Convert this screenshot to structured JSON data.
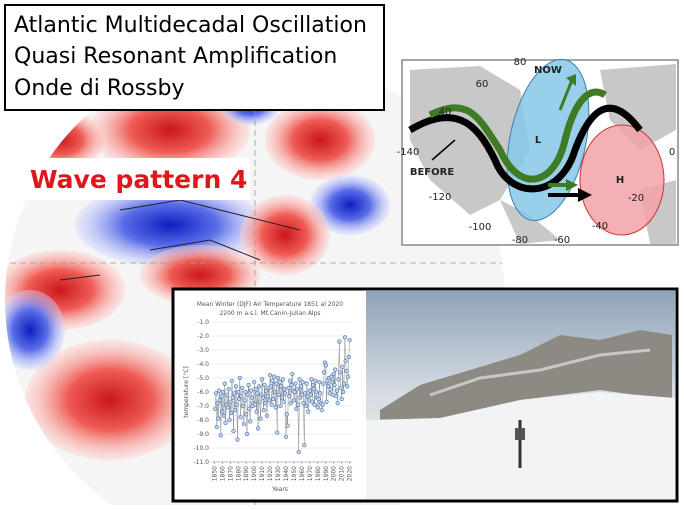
{
  "header": {
    "lines": [
      "Atlantic Multidecadal Oscillation",
      "Quasi Resonant Amplification",
      "Onde di Rossby"
    ]
  },
  "wave_label": "Wave pattern 4",
  "rossby_map": {
    "labels": [
      "80",
      "60",
      "40",
      "-140",
      "0",
      "-120",
      "-100",
      "-80",
      "-60",
      "-40",
      "-20",
      "NOW",
      "BEFORE",
      "L",
      "H"
    ]
  },
  "inset_chart": {
    "type": "line",
    "title": "Mean Winter (DJF) Air Temperature 1851 al 2020",
    "subtitle": "2200 m a.s.l. Mt.Canin-Julian Alps",
    "ylabel": "temperature [°C]",
    "xlabel": "Years",
    "color": "#3d6db5",
    "x": [
      1851,
      1852,
      1853,
      1854,
      1855,
      1856,
      1857,
      1858,
      1859,
      1860,
      1861,
      1862,
      1863,
      1864,
      1865,
      1866,
      1867,
      1868,
      1869,
      1870,
      1871,
      1872,
      1873,
      1874,
      1875,
      1876,
      1877,
      1878,
      1879,
      1880,
      1881,
      1882,
      1883,
      1884,
      1885,
      1886,
      1887,
      1888,
      1889,
      1890,
      1891,
      1892,
      1893,
      1894,
      1895,
      1896,
      1897,
      1898,
      1899,
      1900,
      1901,
      1902,
      1903,
      1904,
      1905,
      1906,
      1907,
      1908,
      1909,
      1910,
      1911,
      1912,
      1913,
      1914,
      1915,
      1916,
      1917,
      1918,
      1919,
      1920,
      1921,
      1922,
      1923,
      1924,
      1925,
      1926,
      1927,
      1928,
      1929,
      1930,
      1931,
      1932,
      1933,
      1934,
      1935,
      1936,
      1937,
      1938,
      1939,
      1940,
      1941,
      1942,
      1943,
      1944,
      1945,
      1946,
      1947,
      1948,
      1949,
      1950,
      1951,
      1952,
      1953,
      1954,
      1955,
      1956,
      1957,
      1958,
      1959,
      1960,
      1961,
      1962,
      1963,
      1964,
      1965,
      1966,
      1967,
      1968,
      1969,
      1970,
      1971,
      1972,
      1973,
      1974,
      1975,
      1976,
      1977,
      1978,
      1979,
      1980,
      1981,
      1982,
      1983,
      1984,
      1985,
      1986,
      1987,
      1988,
      1989,
      1990,
      1991,
      1992,
      1993,
      1994,
      1995,
      1996,
      1997,
      1998,
      1999,
      2000,
      2001,
      2002,
      2003,
      2004,
      2005,
      2006,
      2007,
      2008,
      2009,
      2010,
      2011,
      2012,
      2013,
      2014,
      2015,
      2016,
      2017,
      2018,
      2019,
      2020
    ],
    "values": [
      -7.2,
      -6.1,
      -8.5,
      -6.8,
      -7.9,
      -5.9,
      -6.6,
      -9.1,
      -6.3,
      -7.4,
      -6.0,
      -7.7,
      -5.4,
      -8.2,
      -6.9,
      -6.2,
      -7.1,
      -5.8,
      -8.0,
      -6.7,
      -7.5,
      -5.2,
      -6.4,
      -8.8,
      -6.1,
      -7.3,
      -5.6,
      -6.9,
      -9.4,
      -6.0,
      -6.5,
      -5.0,
      -7.8,
      -6.3,
      -5.7,
      -7.0,
      -8.3,
      -6.6,
      -6.0,
      -7.6,
      -9.0,
      -6.2,
      -5.5,
      -7.2,
      -8.1,
      -5.9,
      -6.4,
      -7.0,
      -6.8,
      -5.3,
      -6.9,
      -5.8,
      -7.4,
      -6.1,
      -8.6,
      -5.6,
      -6.7,
      -7.9,
      -6.2,
      -5.1,
      -6.4,
      -7.3,
      -5.5,
      -6.8,
      -5.9,
      -7.7,
      -6.3,
      -5.7,
      -6.6,
      -4.8,
      -5.6,
      -6.9,
      -5.2,
      -6.5,
      -4.9,
      -6.0,
      -7.1,
      -5.4,
      -8.9,
      -5.0,
      -6.2,
      -5.3,
      -7.0,
      -5.6,
      -6.4,
      -5.1,
      -6.7,
      -5.8,
      -6.1,
      -9.2,
      -7.6,
      -8.4,
      -5.7,
      -6.3,
      -5.2,
      -6.8,
      -5.5,
      -4.7,
      -5.9,
      -6.6,
      -6.0,
      -5.4,
      -7.2,
      -5.8,
      -6.9,
      -10.3,
      -5.1,
      -6.4,
      -5.6,
      -6.2,
      -5.3,
      -6.8,
      -9.8,
      -6.1,
      -7.0,
      -5.4,
      -6.3,
      -7.4,
      -6.6,
      -5.9,
      -6.2,
      -5.1,
      -6.7,
      -5.5,
      -5.8,
      -6.9,
      -5.2,
      -6.0,
      -6.4,
      -7.1,
      -6.5,
      -5.3,
      -6.1,
      -6.8,
      -7.3,
      -6.9,
      -5.4,
      -4.6,
      -3.9,
      -4.1,
      -6.7,
      -5.2,
      -5.6,
      -5.0,
      -6.1,
      -5.8,
      -4.9,
      -5.3,
      -6.2,
      -4.7,
      -5.5,
      -4.4,
      -6.3,
      -5.9,
      -6.8,
      -5.1,
      -2.4,
      -4.6,
      -5.7,
      -6.5,
      -4.2,
      -6.0,
      -5.4,
      -2.1,
      -3.8,
      -4.5,
      -5.6,
      -4.9,
      -3.5,
      -2.3
    ],
    "xlim": [
      1847,
      2023
    ],
    "ylim": [
      -11,
      -1
    ],
    "xticks": [
      1850,
      1860,
      1870,
      1880,
      1890,
      1900,
      1910,
      1920,
      1930,
      1940,
      1950,
      1960,
      1970,
      1980,
      1990,
      2000,
      2010,
      2020
    ],
    "yticks": [
      {
        "value": -1,
        "label": "-1.0"
      },
      {
        "value": -2,
        "label": "-2.0"
      },
      {
        "value": -3,
        "label": "-3.0"
      },
      {
        "value": -4,
        "label": "-4.0"
      },
      {
        "value": -5,
        "label": "-5.0"
      },
      {
        "value": -6,
        "label": "-6.0"
      },
      {
        "value": -7,
        "label": "-7.0"
      },
      {
        "value": -8,
        "label": "-8.0"
      },
      {
        "value": -9,
        "label": "-9.0"
      },
      {
        "value": -10,
        "label": "-10.0"
      },
      {
        "value": -11,
        "label": "-11.0"
      }
    ],
    "grid": true
  }
}
